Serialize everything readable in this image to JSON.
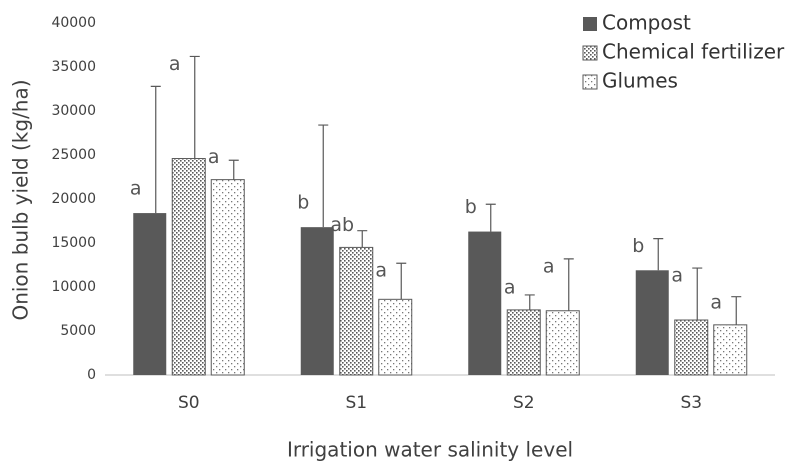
{
  "chart_data": {
    "type": "bar",
    "ylabel": "Onion bulb yield (kg/ha)",
    "xlabel": "Irrigation water salinity level",
    "categories": [
      "S0",
      "S1",
      "S2",
      "S3"
    ],
    "ylim": [
      0,
      40000
    ],
    "yticks": [
      0,
      5000,
      10000,
      15000,
      20000,
      25000,
      30000,
      35000,
      40000
    ],
    "grid": false,
    "legend": "top-right",
    "series": [
      {
        "name": "Compost",
        "color": "#595959",
        "pattern": "solid",
        "values": [
          18400,
          16800,
          16300,
          11900
        ],
        "errors": [
          14400,
          11600,
          3100,
          3600
        ],
        "annotations": [
          "a",
          "b",
          "b",
          "b"
        ]
      },
      {
        "name": "Chemical fertilizer",
        "color": "#595959",
        "pattern": "dense",
        "values": [
          24600,
          14500,
          7400,
          6250
        ],
        "errors": [
          11600,
          1900,
          1700,
          5900
        ],
        "annotations": [
          "a",
          "ab",
          "a",
          "a"
        ]
      },
      {
        "name": "Glumes",
        "color": "#595959",
        "pattern": "sparse",
        "values": [
          22200,
          8600,
          7300,
          5700
        ],
        "errors": [
          2200,
          4100,
          5900,
          3200
        ],
        "annotations": [
          "a",
          "a",
          "a",
          "a"
        ]
      }
    ]
  }
}
